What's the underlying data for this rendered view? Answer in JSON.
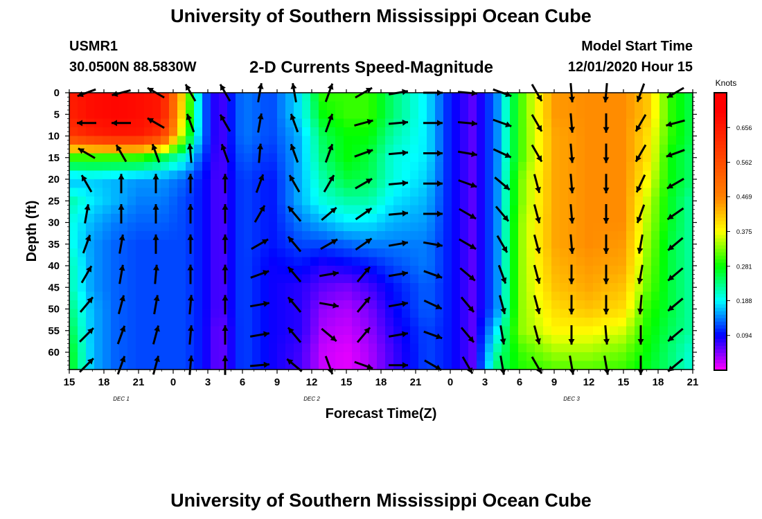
{
  "header": {
    "title": "University of Southern Mississippi Ocean Cube",
    "station_id": "USMR1",
    "station_coords": "30.0500N 88.5830W",
    "subtitle": "2-D Currents Speed-Magnitude",
    "model_start_label": "Model Start Time",
    "model_start_value": "12/01/2020 Hour 15"
  },
  "footer": {
    "title": "University of Southern Mississippi Ocean Cube"
  },
  "colors": {
    "magenta": "#ff00ff",
    "blue": "#0000ff",
    "cyan": "#00ffff",
    "green": "#00ff00",
    "yellow": "#ffff00",
    "orange": "#ff8000",
    "red": "#ff0000"
  },
  "chart_data": {
    "type": "heatmap",
    "xlabel": "Forecast Time(Z)",
    "ylabel": "Depth (ft)",
    "x_tick_labels": [
      "15",
      "18",
      "21",
      "0",
      "3",
      "6",
      "9",
      "12",
      "15",
      "18",
      "21",
      "0",
      "3",
      "6",
      "9",
      "12",
      "15",
      "18",
      "21"
    ],
    "x_range_hours": [
      0,
      54
    ],
    "date_labels": [
      {
        "label": "DEC 1",
        "hour": 4.5
      },
      {
        "label": "DEC 2",
        "hour": 21
      },
      {
        "label": "DEC 3",
        "hour": 43.5
      }
    ],
    "y_ticks": [
      0,
      5,
      10,
      15,
      20,
      25,
      30,
      35,
      40,
      45,
      50,
      55,
      60
    ],
    "ylim": [
      0,
      64
    ],
    "y_inverted": true,
    "colorbar": {
      "title": "Knots",
      "ticks": [
        0.094,
        0.188,
        0.281,
        0.375,
        0.469,
        0.562,
        0.656
      ],
      "range": [
        0,
        0.75
      ]
    },
    "speed_grid": {
      "hours": [
        0,
        3,
        6,
        9,
        12,
        15,
        18,
        21,
        24,
        27,
        30,
        33,
        36,
        39,
        42,
        45,
        48,
        51,
        54
      ],
      "depths": [
        0,
        5,
        10,
        15,
        20,
        25,
        30,
        35,
        40,
        45,
        50,
        55,
        60,
        64
      ],
      "values": [
        [
          0.65,
          0.68,
          0.69,
          0.68,
          0.66,
          0.38,
          0.14,
          0.06,
          0.14,
          0.12,
          0.18,
          0.3,
          0.3,
          0.3,
          0.24,
          0.18,
          0.1,
          0.06,
          0.14,
          0.3,
          0.45,
          0.46,
          0.46,
          0.42,
          0.3,
          0.25
        ],
        [
          0.64,
          0.68,
          0.69,
          0.68,
          0.66,
          0.36,
          0.14,
          0.06,
          0.14,
          0.12,
          0.18,
          0.28,
          0.3,
          0.3,
          0.24,
          0.18,
          0.1,
          0.06,
          0.14,
          0.3,
          0.45,
          0.46,
          0.46,
          0.42,
          0.3,
          0.25
        ],
        [
          0.6,
          0.64,
          0.66,
          0.66,
          0.6,
          0.32,
          0.14,
          0.06,
          0.14,
          0.12,
          0.16,
          0.25,
          0.28,
          0.28,
          0.22,
          0.18,
          0.1,
          0.06,
          0.14,
          0.3,
          0.44,
          0.46,
          0.46,
          0.4,
          0.3,
          0.25
        ],
        [
          0.3,
          0.3,
          0.3,
          0.3,
          0.26,
          0.2,
          0.12,
          0.06,
          0.13,
          0.11,
          0.16,
          0.24,
          0.28,
          0.26,
          0.2,
          0.18,
          0.1,
          0.06,
          0.14,
          0.3,
          0.44,
          0.46,
          0.46,
          0.4,
          0.28,
          0.24
        ],
        [
          0.16,
          0.17,
          0.16,
          0.15,
          0.15,
          0.13,
          0.1,
          0.06,
          0.12,
          0.1,
          0.16,
          0.22,
          0.26,
          0.25,
          0.2,
          0.17,
          0.1,
          0.06,
          0.14,
          0.32,
          0.44,
          0.46,
          0.46,
          0.38,
          0.28,
          0.24
        ],
        [
          0.22,
          0.18,
          0.16,
          0.14,
          0.14,
          0.12,
          0.1,
          0.06,
          0.12,
          0.1,
          0.16,
          0.2,
          0.22,
          0.22,
          0.18,
          0.16,
          0.1,
          0.06,
          0.14,
          0.32,
          0.44,
          0.46,
          0.46,
          0.36,
          0.27,
          0.22
        ],
        [
          0.2,
          0.16,
          0.14,
          0.13,
          0.13,
          0.12,
          0.1,
          0.06,
          0.12,
          0.1,
          0.14,
          0.16,
          0.18,
          0.18,
          0.16,
          0.15,
          0.1,
          0.06,
          0.14,
          0.33,
          0.44,
          0.46,
          0.46,
          0.35,
          0.27,
          0.22
        ],
        [
          0.2,
          0.15,
          0.13,
          0.12,
          0.12,
          0.12,
          0.1,
          0.06,
          0.12,
          0.1,
          0.12,
          0.12,
          0.13,
          0.14,
          0.14,
          0.14,
          0.1,
          0.06,
          0.14,
          0.33,
          0.44,
          0.46,
          0.45,
          0.34,
          0.26,
          0.22
        ],
        [
          0.22,
          0.15,
          0.13,
          0.12,
          0.12,
          0.12,
          0.1,
          0.06,
          0.12,
          0.09,
          0.1,
          0.08,
          0.09,
          0.1,
          0.12,
          0.14,
          0.1,
          0.06,
          0.14,
          0.33,
          0.43,
          0.45,
          0.44,
          0.33,
          0.26,
          0.22
        ],
        [
          0.22,
          0.15,
          0.13,
          0.12,
          0.12,
          0.12,
          0.1,
          0.06,
          0.12,
          0.09,
          0.08,
          0.06,
          0.05,
          0.07,
          0.1,
          0.13,
          0.1,
          0.06,
          0.14,
          0.33,
          0.42,
          0.44,
          0.42,
          0.32,
          0.26,
          0.22
        ],
        [
          0.24,
          0.16,
          0.13,
          0.12,
          0.12,
          0.12,
          0.1,
          0.06,
          0.12,
          0.09,
          0.08,
          0.04,
          0.03,
          0.05,
          0.09,
          0.13,
          0.1,
          0.06,
          0.14,
          0.33,
          0.4,
          0.42,
          0.4,
          0.3,
          0.26,
          0.22
        ],
        [
          0.26,
          0.16,
          0.13,
          0.12,
          0.12,
          0.12,
          0.1,
          0.05,
          0.12,
          0.09,
          0.08,
          0.03,
          0.02,
          0.04,
          0.08,
          0.12,
          0.1,
          0.06,
          0.18,
          0.33,
          0.38,
          0.38,
          0.36,
          0.29,
          0.25,
          0.22
        ],
        [
          0.28,
          0.16,
          0.13,
          0.12,
          0.12,
          0.12,
          0.1,
          0.05,
          0.12,
          0.09,
          0.07,
          0.02,
          0.01,
          0.03,
          0.07,
          0.12,
          0.1,
          0.06,
          0.22,
          0.3,
          0.34,
          0.34,
          0.32,
          0.28,
          0.24,
          0.2
        ],
        [
          0.28,
          0.16,
          0.13,
          0.12,
          0.12,
          0.12,
          0.1,
          0.05,
          0.12,
          0.09,
          0.07,
          0.02,
          0.01,
          0.03,
          0.07,
          0.12,
          0.1,
          0.06,
          0.24,
          0.29,
          0.31,
          0.31,
          0.3,
          0.27,
          0.24,
          0.2
        ]
      ],
      "value_hours": [
        0,
        2,
        4,
        6,
        8,
        10,
        11.5,
        13,
        15,
        17.5,
        20,
        22,
        24,
        26,
        28,
        31,
        33,
        35,
        37,
        39,
        42,
        45,
        48,
        50,
        52,
        54
      ]
    },
    "vector_hours": [
      1.5,
      4.5,
      7.5,
      10.5,
      13.5,
      16.5,
      19.5,
      22.5,
      25.5,
      28.5,
      31.5,
      34.5,
      37.5,
      40.5,
      43.5,
      46.5,
      49.5,
      52.5
    ],
    "vector_depths": [
      0,
      7,
      14,
      21,
      28,
      35,
      42,
      49,
      56,
      63
    ],
    "vector_directions_deg": [
      [
        250,
        255,
        300,
        330,
        330,
        10,
        350,
        20,
        60,
        80,
        90,
        95,
        110,
        150,
        175,
        185,
        200,
        240
      ],
      [
        270,
        270,
        300,
        340,
        330,
        10,
        340,
        20,
        75,
        85,
        90,
        95,
        110,
        150,
        175,
        180,
        210,
        255
      ],
      [
        300,
        330,
        340,
        355,
        340,
        5,
        340,
        20,
        70,
        85,
        90,
        100,
        115,
        150,
        175,
        180,
        210,
        250
      ],
      [
        330,
        0,
        0,
        0,
        0,
        20,
        330,
        30,
        60,
        85,
        90,
        110,
        130,
        165,
        175,
        180,
        205,
        240
      ],
      [
        10,
        0,
        0,
        0,
        0,
        30,
        320,
        50,
        55,
        85,
        90,
        120,
        140,
        165,
        175,
        180,
        200,
        235
      ],
      [
        20,
        10,
        0,
        0,
        0,
        60,
        320,
        60,
        55,
        80,
        100,
        120,
        150,
        165,
        175,
        180,
        190,
        230
      ],
      [
        30,
        10,
        5,
        0,
        0,
        70,
        320,
        80,
        40,
        80,
        110,
        130,
        160,
        165,
        180,
        180,
        190,
        230
      ],
      [
        40,
        15,
        10,
        5,
        0,
        80,
        320,
        100,
        40,
        80,
        115,
        140,
        165,
        165,
        180,
        180,
        185,
        230
      ],
      [
        45,
        20,
        15,
        5,
        0,
        80,
        320,
        130,
        40,
        80,
        110,
        140,
        170,
        165,
        180,
        175,
        180,
        230
      ],
      [
        45,
        20,
        15,
        5,
        0,
        85,
        310,
        160,
        110,
        90,
        120,
        150,
        170,
        150,
        170,
        170,
        180,
        230
      ]
    ]
  }
}
